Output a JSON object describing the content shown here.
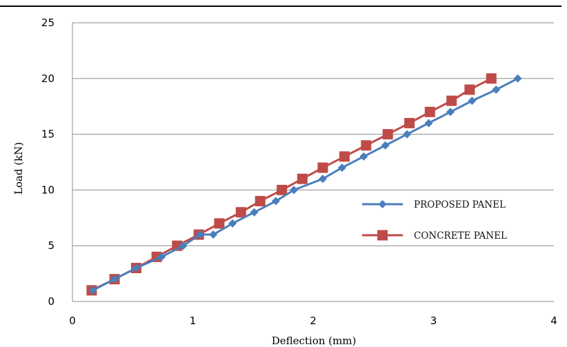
{
  "chart_data": {
    "type": "line",
    "title": "",
    "xlabel": "Deflection (mm)",
    "ylabel": "Load (kN)",
    "xlim": [
      0,
      4
    ],
    "ylim": [
      0,
      25
    ],
    "x_ticks": [
      0,
      1,
      2,
      3,
      4
    ],
    "y_ticks": [
      0,
      5,
      10,
      15,
      20,
      25
    ],
    "grid": "horizontal",
    "legend_position": "right",
    "series": [
      {
        "name": "PROPOSED PANEL",
        "color": "#4a7ebb",
        "marker": "diamond",
        "points": [
          [
            0.17,
            1
          ],
          [
            0.35,
            2
          ],
          [
            0.53,
            3
          ],
          [
            0.74,
            4
          ],
          [
            0.92,
            5
          ],
          [
            1.06,
            6
          ],
          [
            1.17,
            6
          ],
          [
            1.33,
            7
          ],
          [
            1.51,
            8
          ],
          [
            1.69,
            9
          ],
          [
            1.84,
            10
          ],
          [
            2.08,
            11
          ],
          [
            2.24,
            12
          ],
          [
            2.42,
            13
          ],
          [
            2.6,
            14
          ],
          [
            2.78,
            15
          ],
          [
            2.96,
            16
          ],
          [
            3.14,
            17
          ],
          [
            3.32,
            18
          ],
          [
            3.52,
            19
          ],
          [
            3.7,
            20
          ]
        ]
      },
      {
        "name": "CONCRETE PANEL",
        "color": "#be4b48",
        "marker": "square",
        "points": [
          [
            0.16,
            1
          ],
          [
            0.35,
            2
          ],
          [
            0.53,
            3
          ],
          [
            0.7,
            4
          ],
          [
            0.87,
            5
          ],
          [
            1.05,
            6
          ],
          [
            1.22,
            7
          ],
          [
            1.4,
            8
          ],
          [
            1.56,
            9
          ],
          [
            1.74,
            10
          ],
          [
            1.91,
            11
          ],
          [
            2.08,
            12
          ],
          [
            2.26,
            13
          ],
          [
            2.44,
            14
          ],
          [
            2.62,
            15
          ],
          [
            2.8,
            16
          ],
          [
            2.97,
            17
          ],
          [
            3.15,
            18
          ],
          [
            3.3,
            19
          ],
          [
            3.48,
            20
          ]
        ]
      }
    ]
  }
}
